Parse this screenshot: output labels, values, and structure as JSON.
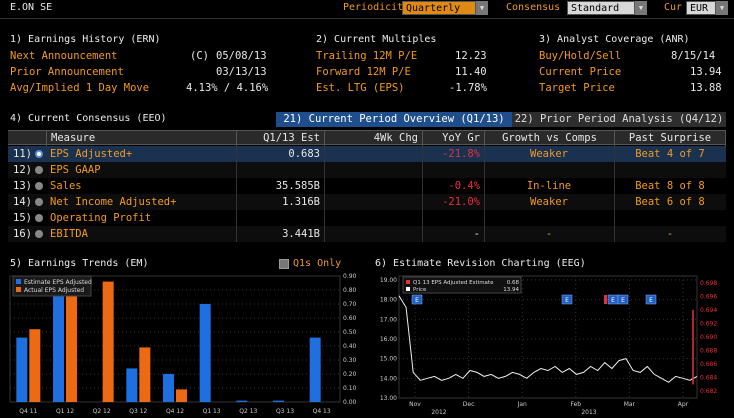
{
  "ticker": "E.ON SE",
  "controls": {
    "periodicity_label": "Periodicity",
    "periodicity_value": "Quarterly",
    "consensus_label": "Consensus",
    "consensus_value": "Standard",
    "cur_label": "Cur",
    "cur_value": "EUR"
  },
  "earnings_history": {
    "title": "1) Earnings History (ERN)",
    "rows": [
      {
        "label": "Next Announcement",
        "flag": "(C)",
        "value": "05/08/13"
      },
      {
        "label": "Prior Announcement",
        "flag": "",
        "value": "03/13/13"
      },
      {
        "label": "Avg/Implied 1 Day Move",
        "flag": "",
        "value": "4.13% / 4.16%"
      }
    ]
  },
  "multiples": {
    "title": "2) Current Multiples",
    "rows": [
      {
        "label": "Trailing 12M P/E",
        "value": "12.23"
      },
      {
        "label": "Forward 12M P/E",
        "value": "11.40"
      },
      {
        "label": "Est. LTG (EPS)",
        "value": "-1.78%"
      }
    ]
  },
  "analyst": {
    "title": "3) Analyst Coverage (ANR)",
    "rows": [
      {
        "label": "Buy/Hold/Sell",
        "value": "8/15/14"
      },
      {
        "label": "Current Price",
        "value": "13.94"
      },
      {
        "label": "Target Price",
        "value": "13.88"
      }
    ]
  },
  "consensus": {
    "title": "4) Current Consensus (EEO)",
    "tab_active": "21) Current Period Overview (Q1/13)",
    "tab_inactive": "22) Prior Period Analysis (Q4/12)",
    "columns": [
      "Measure",
      "Q1/13 Est",
      "4Wk Chg",
      "YoY Gr",
      "Growth vs Comps",
      "Past Surprise"
    ],
    "rows": [
      {
        "num": "11)",
        "measure": "EPS Adjusted+",
        "est": "0.683",
        "chg": "",
        "yoy": "-21.8%",
        "growth": "Weaker",
        "surprise": "Beat 4 of 7"
      },
      {
        "num": "12)",
        "measure": "EPS GAAP",
        "est": "",
        "chg": "",
        "yoy": "",
        "growth": "",
        "surprise": ""
      },
      {
        "num": "13)",
        "measure": "Sales",
        "est": "35.585B",
        "chg": "",
        "yoy": "-0.4%",
        "growth": "In-line",
        "surprise": "Beat 8 of 8"
      },
      {
        "num": "14)",
        "measure": "Net Income Adjusted+",
        "est": "1.316B",
        "chg": "",
        "yoy": "-21.0%",
        "growth": "Weaker",
        "surprise": "Beat 6 of 8"
      },
      {
        "num": "15)",
        "measure": "Operating Profit",
        "est": "",
        "chg": "",
        "yoy": "",
        "growth": "",
        "surprise": ""
      },
      {
        "num": "16)",
        "measure": "EBITDA",
        "est": "3.441B",
        "chg": "",
        "yoy": "-",
        "growth": "-",
        "surprise": "-"
      }
    ]
  },
  "trends": {
    "title": "5) Earnings Trends (EM)",
    "q1s_only": "Q1s Only"
  },
  "revision": {
    "title": "6) Estimate Revision Charting (EEG)"
  },
  "chart_data": [
    {
      "type": "bar",
      "categories": [
        "Q4 11",
        "Q1 12",
        "Q2 12",
        "Q3 12",
        "Q4 12",
        "Q1 13",
        "Q2 13",
        "Q3 13",
        "Q4 13"
      ],
      "series": [
        {
          "name": "Estimate EPS Adjusted",
          "color": "#1e6fe0",
          "values": [
            0.46,
            0.82,
            null,
            0.24,
            0.2,
            0.7,
            0.01,
            0.01,
            0.46
          ]
        },
        {
          "name": "Actual EPS Adjusted",
          "color": "#ec6a14",
          "values": [
            0.52,
            0.87,
            0.86,
            0.39,
            0.09,
            null,
            null,
            null,
            null
          ]
        }
      ],
      "y_ticks": [
        "0.90",
        "0.80",
        "0.70",
        "0.60",
        "0.50",
        "0.40",
        "0.30",
        "0.20",
        "0.10",
        "0.00"
      ],
      "ylim": [
        0,
        0.9
      ]
    },
    {
      "type": "line",
      "legend": [
        {
          "name": "Q1 13 EPS Adjusted Estimate",
          "value": "0.68",
          "color": "#e8303a"
        },
        {
          "name": "Price",
          "value": "13.94",
          "color": "#ffffff"
        }
      ],
      "x_ticks": [
        "Nov",
        "Dec",
        "Jan",
        "Feb",
        "Mar",
        "Apr"
      ],
      "x_years": [
        "2012",
        "2013"
      ],
      "y_left_ticks": [
        "19.00",
        "18.00",
        "17.00",
        "16.00",
        "15.00",
        "14.00",
        "13.00"
      ],
      "y_right_ticks": [
        "0.698",
        "0.696",
        "0.694",
        "0.692",
        "0.690",
        "0.688",
        "0.686",
        "0.684",
        "0.682"
      ],
      "price": [
        18.2,
        17.6,
        14.3,
        13.9,
        14.0,
        14.1,
        13.9,
        14.0,
        14.2,
        14.0,
        14.4,
        14.3,
        14.1,
        14.2,
        14.0,
        14.1,
        14.3,
        14.2,
        14.0,
        14.3,
        14.5,
        14.4,
        14.6,
        14.3,
        14.5,
        14.2,
        14.3,
        14.6,
        14.4,
        14.8,
        14.5,
        14.9,
        15.0,
        14.4,
        14.3,
        14.6,
        14.2,
        14.0,
        13.8,
        14.1,
        14.0,
        13.9,
        14.1
      ],
      "estimate_drop": [
        0.694,
        0.683
      ],
      "markers": [
        "E",
        "E",
        "E",
        "E",
        "E"
      ]
    }
  ]
}
